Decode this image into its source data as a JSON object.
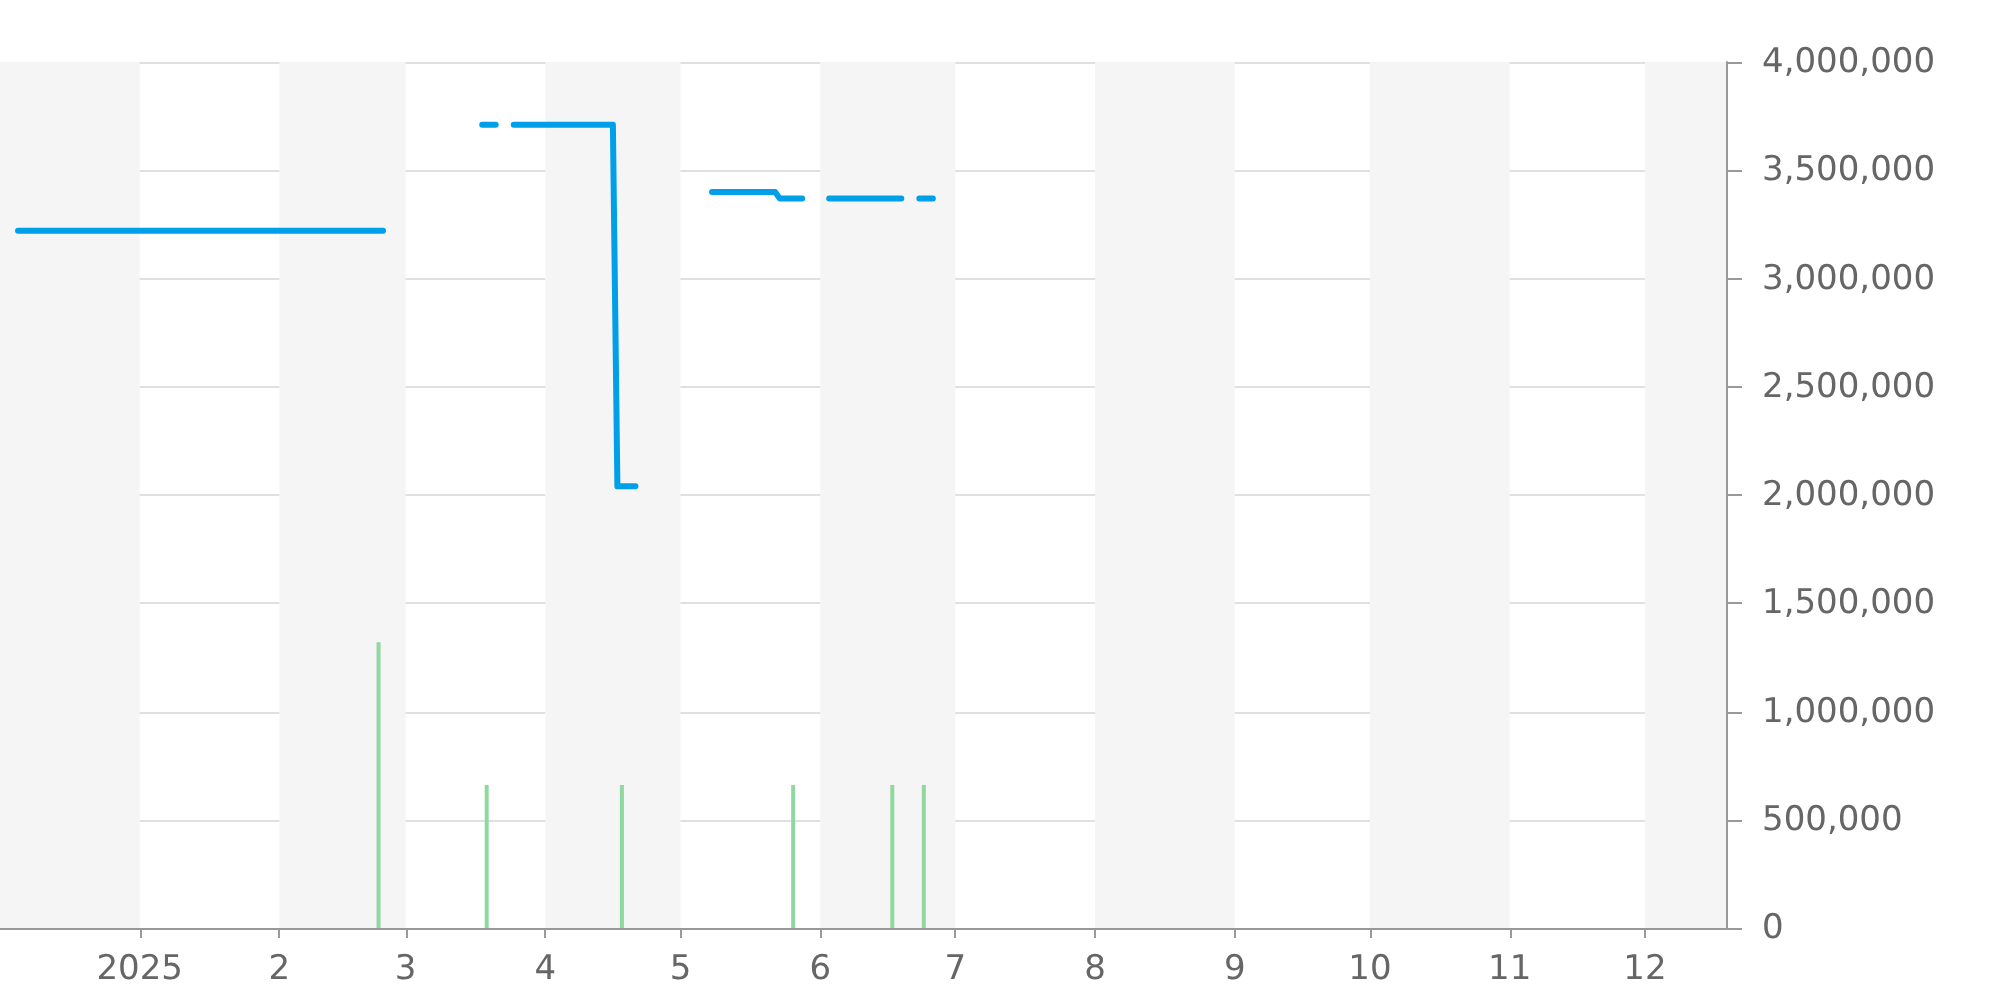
{
  "chart_data": {
    "type": "line",
    "xlim": [
      "2024-12-01",
      "2025-12-19"
    ],
    "xticks": [
      {
        "value": "2025-01-01",
        "label": "2025"
      },
      {
        "value": "2025-02-01",
        "label": "2"
      },
      {
        "value": "2025-03-01",
        "label": "3"
      },
      {
        "value": "2025-04-01",
        "label": "4"
      },
      {
        "value": "2025-05-01",
        "label": "5"
      },
      {
        "value": "2025-06-01",
        "label": "6"
      },
      {
        "value": "2025-07-01",
        "label": "7"
      },
      {
        "value": "2025-08-01",
        "label": "8"
      },
      {
        "value": "2025-09-01",
        "label": "9"
      },
      {
        "value": "2025-10-01",
        "label": "10"
      },
      {
        "value": "2025-11-01",
        "label": "11"
      },
      {
        "value": "2025-12-01",
        "label": "12"
      }
    ],
    "ylim": [
      0,
      4000000
    ],
    "yticks": [
      {
        "value": 0,
        "label": "0"
      },
      {
        "value": 500000,
        "label": "500,000"
      },
      {
        "value": 1000000,
        "label": "1,000,000"
      },
      {
        "value": 1500000,
        "label": "1,500,000"
      },
      {
        "value": 2000000,
        "label": "2,000,000"
      },
      {
        "value": 2500000,
        "label": "2,500,000"
      },
      {
        "value": 3000000,
        "label": "3,000,000"
      },
      {
        "value": 3500000,
        "label": "3,500,000"
      },
      {
        "value": 4000000,
        "label": "4,000,000"
      }
    ],
    "grid": "y",
    "marker": "none",
    "line_style": "solid",
    "bands": [
      {
        "axis": "x",
        "from": "2024-12-01",
        "to": "2025-01-01",
        "color": "#f5f5f5"
      },
      {
        "axis": "x",
        "from": "2025-02-01",
        "to": "2025-03-01",
        "color": "#f5f5f5"
      },
      {
        "axis": "x",
        "from": "2025-04-01",
        "to": "2025-05-01",
        "color": "#f5f5f5"
      },
      {
        "axis": "x",
        "from": "2025-06-01",
        "to": "2025-07-01",
        "color": "#f5f5f5"
      },
      {
        "axis": "x",
        "from": "2025-08-01",
        "to": "2025-09-01",
        "color": "#f5f5f5"
      },
      {
        "axis": "x",
        "from": "2025-10-01",
        "to": "2025-11-01",
        "color": "#f5f5f5"
      },
      {
        "axis": "x",
        "from": "2025-12-01",
        "to": "2025-12-19",
        "color": "#f5f5f5"
      }
    ],
    "series": [
      {
        "type": "bar",
        "color": "#8fd9a0",
        "x": [
          "2025-02-23",
          "2025-03-19",
          "2025-04-18",
          "2025-05-26",
          "2025-06-17",
          "2025-06-24"
        ],
        "values": [
          1320000,
          660000,
          660000,
          660000,
          660000,
          660000
        ]
      },
      {
        "color": "#00a0e9",
        "x": [
          "2024-12-05",
          "2025-02-24",
          "2025-03-01",
          "2025-03-18",
          "2025-03-21",
          "2025-03-23",
          "2025-03-25",
          "2025-04-16",
          "2025-04-17",
          "2025-04-21",
          "2025-05-01",
          "2025-05-08",
          "2025-05-22",
          "2025-05-23",
          "2025-05-28",
          "2025-05-30",
          "2025-06-03",
          "2025-06-19",
          "2025-06-21",
          "2025-06-23",
          "2025-06-26"
        ],
        "values": [
          3220000,
          3220000,
          null,
          3710000,
          3710000,
          null,
          3710000,
          3710000,
          2040000,
          2040000,
          null,
          3400000,
          3400000,
          3370000,
          3370000,
          null,
          3370000,
          3370000,
          null,
          3370000,
          3370000
        ]
      }
    ]
  }
}
